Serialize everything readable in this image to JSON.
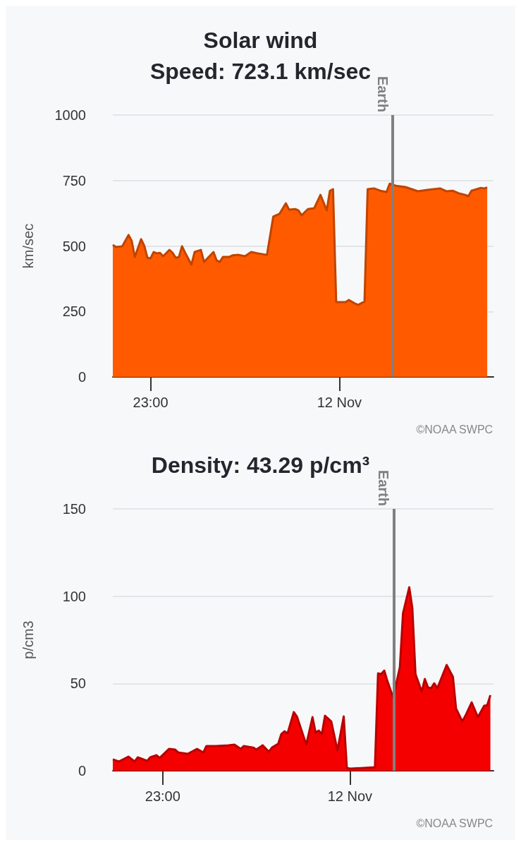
{
  "chart_data": [
    {
      "type": "area",
      "title": "Solar wind",
      "subtitle": "Speed: 723.1 km/sec",
      "ylabel": "km/sec",
      "annotations": [
        "©NOAA SWPC"
      ],
      "x": [
        "--11-11T22:48",
        "--11-11T22:49",
        "--11-11T22:51",
        "--11-11T22:53",
        "--11-11T22:54",
        "--11-11T22:55",
        "--11-11T22:57",
        "--11-11T22:58",
        "--11-11T22:59",
        "--11-11T23:00",
        "--11-11T23:01",
        "--11-11T23:02",
        "--11-11T23:03",
        "--11-11T23:04",
        "--11-11T23:06",
        "--11-11T23:07",
        "--11-11T23:08",
        "--11-11T23:09",
        "--11-11T23:10",
        "--11-11T23:11",
        "--11-11T23:13",
        "--11-11T23:14",
        "--11-11T23:16",
        "--11-11T23:17",
        "--11-11T23:20",
        "--11-11T23:21",
        "--11-11T23:22",
        "--11-11T23:23",
        "--11-11T23:25",
        "--11-11T23:26",
        "--11-11T23:28",
        "--11-11T23:30",
        "--11-11T23:32",
        "--11-11T23:34",
        "--11-11T23:37",
        "--11-11T23:39",
        "--11-11T23:41",
        "--11-11T23:43",
        "--11-11T23:44",
        "--11-11T23:46",
        "--11-11T23:47",
        "--11-11T23:48",
        "--11-11T23:50",
        "--11-11T23:52",
        "--11-11T23:54",
        "--11-11T23:56",
        "--11-11T23:57",
        "--11-11T23:58",
        "--11-11T23:59",
        "--11-12T00:02",
        "--11-12T00:03",
        "--11-12T00:05",
        "--11-12T00:06",
        "--11-12T00:08",
        "--11-12T00:09",
        "--11-12T00:11",
        "--11-12T00:13",
        "--11-12T00:15",
        "--11-12T00:16",
        "--11-12T00:18",
        "--11-12T00:21",
        "--11-12T00:25",
        "--11-12T00:28",
        "--11-12T00:32",
        "--11-12T00:34",
        "--11-12T00:36",
        "--11-12T00:38",
        "--11-12T00:40",
        "--11-12T00:41",
        "--11-12T00:42",
        "--11-12T00:45",
        "--11-12T00:46",
        "--11-12T00:47"
      ],
      "series": [
        {
          "color": "#ff5a00",
          "values": [
            504,
            496,
            499,
            542,
            520,
            458,
            526,
            501,
            455,
            453,
            477,
            472,
            474,
            461,
            485,
            474,
            455,
            458,
            499,
            474,
            429,
            477,
            485,
            439,
            477,
            445,
            439,
            458,
            458,
            464,
            466,
            461,
            477,
            472,
            466,
            612,
            623,
            663,
            639,
            641,
            636,
            617,
            641,
            644,
            695,
            636,
            711,
            717,
            286,
            286,
            294,
            280,
            275,
            288,
            717,
            720,
            711,
            706,
            738,
            730,
            725,
            709,
            714,
            720,
            709,
            711,
            701,
            695,
            690,
            711,
            722,
            720,
            723
          ]
        }
      ],
      "xlim": [
        "--11-11T22:48",
        "--11-12T00:49"
      ],
      "xticks": [
        {
          "value": "--11-11T23:00",
          "label": "23:00"
        },
        {
          "value": "--11-12T00:00",
          "label": "12 Nov"
        }
      ],
      "ylim": [
        0,
        1000
      ],
      "yticks": [
        0,
        250,
        500,
        750,
        1000
      ],
      "grid": "y",
      "ref_lines": [
        {
          "axis": "x",
          "value": "--11-12T00:17",
          "label": "Earth",
          "color": "#808080"
        }
      ]
    },
    {
      "type": "area",
      "title": "Density: 43.29 p/cm³",
      "ylabel": "p/cm3",
      "annotations": [
        "©NOAA SWPC"
      ],
      "x": [
        "--11-11T22:44",
        "--11-11T22:46",
        "--11-11T22:49",
        "--11-11T22:51",
        "--11-11T22:52",
        "--11-11T22:55",
        "--11-11T22:56",
        "--11-11T22:58",
        "--11-11T22:59",
        "--11-11T23:02",
        "--11-11T23:04",
        "--11-11T23:05",
        "--11-11T23:08",
        "--11-11T23:11",
        "--11-11T23:13",
        "--11-11T23:14",
        "--11-11T23:17",
        "--11-11T23:21",
        "--11-11T23:23",
        "--11-11T23:25",
        "--11-11T23:26",
        "--11-11T23:29",
        "--11-11T23:30",
        "--11-11T23:32",
        "--11-11T23:34",
        "--11-11T23:35",
        "--11-11T23:37",
        "--11-11T23:38",
        "--11-11T23:39",
        "--11-11T23:40",
        "--11-11T23:42",
        "--11-11T23:43",
        "--11-11T23:46",
        "--11-11T23:48",
        "--11-11T23:49",
        "--11-11T23:50",
        "--11-11T23:51",
        "--11-11T23:52",
        "--11-11T23:54",
        "--11-11T23:56",
        "--11-11T23:58",
        "--11-11T23:59",
        "--11-12T00:00",
        "--11-12T00:08",
        "--11-12T00:09",
        "--11-12T00:10",
        "--11-12T00:11",
        "--11-12T00:12",
        "--11-12T00:14",
        "--11-12T00:15",
        "--11-12T00:16",
        "--11-12T00:17",
        "--11-12T00:19",
        "--11-12T00:20",
        "--11-12T00:21",
        "--11-12T00:23",
        "--11-12T00:24",
        "--11-12T00:25",
        "--11-12T00:26",
        "--11-12T00:27",
        "--11-12T00:28",
        "--11-12T00:31",
        "--11-12T00:33",
        "--11-12T00:34",
        "--11-12T00:36",
        "--11-12T00:37",
        "--11-12T00:39",
        "--11-12T00:41",
        "--11-12T00:43",
        "--11-12T00:44",
        "--11-12T00:45"
      ],
      "series": [
        {
          "color": "#f50000",
          "values": [
            6.5,
            5.3,
            8.1,
            5.3,
            7.7,
            5.7,
            7.7,
            8.9,
            7.3,
            12.5,
            12.1,
            10.5,
            9.7,
            12.5,
            10.5,
            14.2,
            14.2,
            14.6,
            15.0,
            12.5,
            14.2,
            13.3,
            12.1,
            14.6,
            10.9,
            13.3,
            15.4,
            21.0,
            22.6,
            21.4,
            33.6,
            31.1,
            15.0,
            30.7,
            21.8,
            23.0,
            21.0,
            31.5,
            28.3,
            11.7,
            31.1,
            1.6,
            1.2,
            2.0,
            55.8,
            55.4,
            57.4,
            51.3,
            41.2,
            51.3,
            59.4,
            90.2,
            105.1,
            93.0,
            55.4,
            45.3,
            52.6,
            47.7,
            47.3,
            50.1,
            47.3,
            60.6,
            53.8,
            35.6,
            28.3,
            31.5,
            39.2,
            30.7,
            37.2,
            37.6,
            43.3
          ]
        }
      ],
      "xlim": [
        "--11-11T22:44",
        "--11-12T00:46"
      ],
      "xticks": [
        {
          "value": "--11-11T23:00",
          "label": "23:00"
        },
        {
          "value": "--11-12T00:00",
          "label": "12 Nov"
        }
      ],
      "ylim": [
        0,
        150
      ],
      "yticks": [
        0,
        50,
        100,
        150
      ],
      "grid": "y",
      "ref_lines": [
        {
          "axis": "x",
          "value": "--11-12T00:14",
          "label": "Earth",
          "color": "#808080"
        }
      ]
    }
  ]
}
